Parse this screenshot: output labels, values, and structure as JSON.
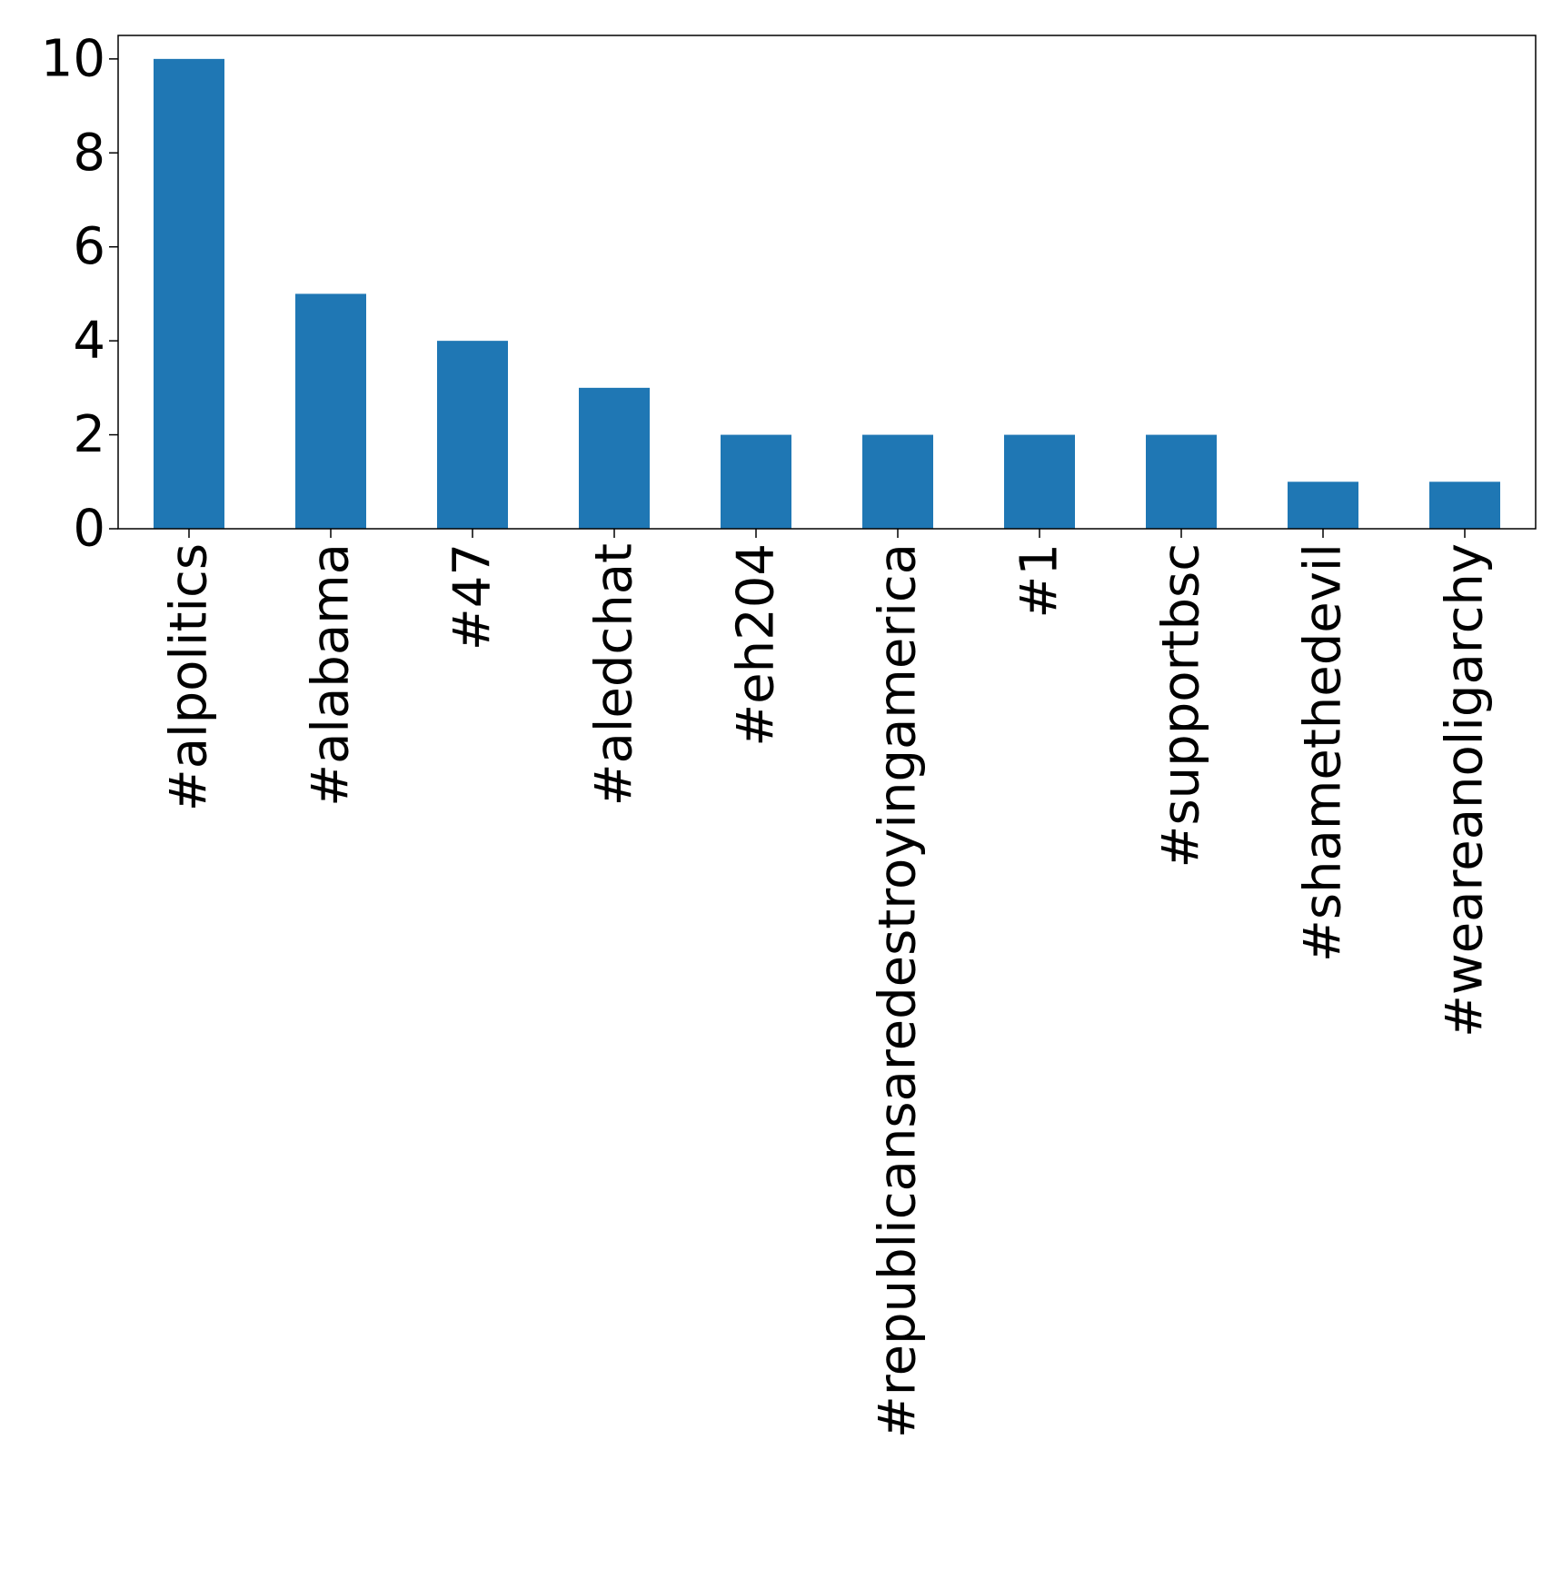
{
  "chart_data": {
    "type": "bar",
    "title": "",
    "xlabel": "",
    "ylabel": "",
    "categories": [
      "#alpolitics",
      "#alabama",
      "#47",
      "#aledchat",
      "#eh204",
      "#republicansaredestroyingamerica",
      "#1",
      "#supportbsc",
      "#shamethedevil",
      "#weareanoligarchy"
    ],
    "values": [
      10,
      5,
      4,
      3,
      2,
      2,
      2,
      2,
      1,
      1
    ],
    "ylim": [
      0,
      10.5
    ],
    "yticks": [
      0,
      2,
      4,
      6,
      8,
      10
    ],
    "grid": false,
    "legend": "none",
    "colors": {
      "bar": "#1f77b4",
      "axes": "#000000"
    }
  }
}
